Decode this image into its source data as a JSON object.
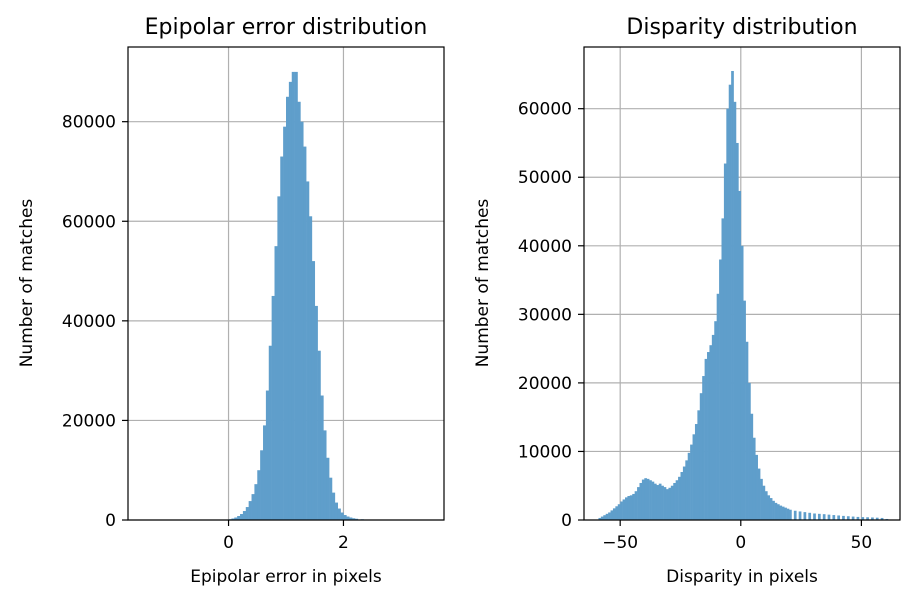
{
  "chart_data": [
    {
      "type": "bar",
      "title": "Epipolar error distribution",
      "xlabel": "Epipolar error in pixels",
      "ylabel": "Number of matches",
      "xlim": [
        -1.75,
        3.75
      ],
      "ylim": [
        0,
        95000
      ],
      "xticks": [
        0,
        2
      ],
      "yticks": [
        0,
        20000,
        40000,
        60000,
        80000
      ],
      "grid": true,
      "color": "#5f9ecb",
      "bins": {
        "x_left": [
          -0.05,
          0.0,
          0.05,
          0.1,
          0.15,
          0.2,
          0.25,
          0.3,
          0.35,
          0.4,
          0.45,
          0.5,
          0.55,
          0.6,
          0.65,
          0.7,
          0.75,
          0.8,
          0.85,
          0.9,
          0.95,
          1.0,
          1.05,
          1.1,
          1.15,
          1.2,
          1.25,
          1.3,
          1.35,
          1.4,
          1.45,
          1.5,
          1.55,
          1.6,
          1.65,
          1.7,
          1.75,
          1.8,
          1.85,
          1.9,
          1.95,
          2.0,
          2.05,
          2.1,
          2.15,
          2.2,
          2.3,
          2.4,
          2.5,
          2.6,
          2.7
        ],
        "width": 0.05,
        "counts": [
          50,
          150,
          300,
          500,
          800,
          1200,
          1800,
          2600,
          3800,
          5200,
          7200,
          10000,
          14000,
          19000,
          26000,
          35000,
          45000,
          55000,
          65000,
          73000,
          79000,
          85000,
          88000,
          90000,
          90000,
          84000,
          80000,
          75000,
          68000,
          61000,
          52000,
          43000,
          34000,
          25000,
          18000,
          12500,
          8500,
          5500,
          3500,
          2300,
          1500,
          1000,
          700,
          500,
          350,
          250,
          150,
          100,
          60,
          30,
          10
        ]
      }
    },
    {
      "type": "bar",
      "title": "Disparity distribution",
      "xlabel": "Disparity in pixels",
      "ylabel": "Number of matches",
      "xlim": [
        -65,
        66
      ],
      "ylim": [
        0,
        69000
      ],
      "xticks": [
        -50,
        0,
        50
      ],
      "yticks": [
        0,
        10000,
        20000,
        30000,
        40000,
        50000,
        60000
      ],
      "grid": true,
      "color": "#5f9ecb",
      "bins": {
        "x_left": [
          -59,
          -58,
          -57,
          -56,
          -55,
          -54,
          -53,
          -52,
          -51,
          -50,
          -49,
          -48,
          -47,
          -46,
          -45,
          -44,
          -43,
          -42,
          -41,
          -40,
          -39,
          -38,
          -37,
          -36,
          -35,
          -34,
          -33,
          -32,
          -31,
          -30,
          -29,
          -28,
          -27,
          -26,
          -25,
          -24,
          -23,
          -22,
          -21,
          -20,
          -19,
          -18,
          -17,
          -16,
          -15,
          -14,
          -13,
          -12,
          -11,
          -10,
          -9,
          -8,
          -7,
          -6,
          -5,
          -4,
          -3,
          -2,
          -1,
          0,
          1,
          2,
          3,
          4,
          5,
          6,
          7,
          8,
          9,
          10,
          11,
          12,
          13,
          14,
          15,
          16,
          17,
          18,
          19,
          20,
          22,
          24,
          26,
          28,
          30,
          32,
          34,
          36,
          38,
          40,
          42,
          44,
          46,
          48,
          50,
          52,
          54,
          56,
          58,
          60
        ],
        "width": 1,
        "counts": [
          300,
          500,
          700,
          900,
          1100,
          1400,
          1700,
          2000,
          2300,
          2700,
          3000,
          3300,
          3500,
          3600,
          3800,
          4200,
          4800,
          5400,
          5900,
          6100,
          6000,
          5800,
          5600,
          5300,
          5100,
          5300,
          5000,
          4800,
          4500,
          4700,
          5000,
          5400,
          5800,
          6300,
          7000,
          7800,
          8700,
          9800,
          11000,
          12500,
          14000,
          16000,
          18500,
          21000,
          23500,
          24500,
          25500,
          27000,
          29000,
          33000,
          38000,
          44000,
          52000,
          60000,
          63500,
          65500,
          61000,
          55000,
          48000,
          40000,
          32000,
          26000,
          20000,
          15500,
          12000,
          9500,
          7500,
          6000,
          5000,
          4200,
          3600,
          3200,
          2800,
          2500,
          2300,
          2100,
          1950,
          1800,
          1650,
          1500,
          1350,
          1250,
          1150,
          1050,
          950,
          900,
          850,
          780,
          720,
          660,
          600,
          550,
          500,
          450,
          420,
          400,
          370,
          340,
          300,
          150
        ]
      }
    }
  ]
}
